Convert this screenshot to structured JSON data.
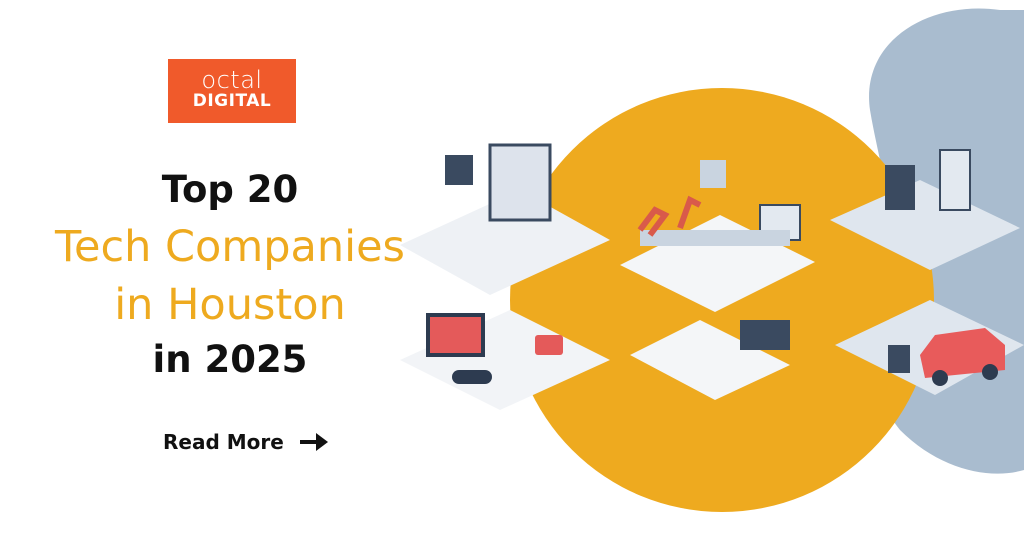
{
  "logo": {
    "line1": "octal",
    "line2": "DIGITAL",
    "color": "#f05a2b"
  },
  "headline": {
    "line1": "Top 20",
    "line2": "Tech Companies",
    "line3": "in Houston",
    "line4": "in 2025"
  },
  "cta": {
    "label": "Read More",
    "icon": "arrow-right-icon"
  },
  "colors": {
    "accent": "#eeaa1f",
    "blob": "#a9bccf",
    "text": "#111111"
  }
}
